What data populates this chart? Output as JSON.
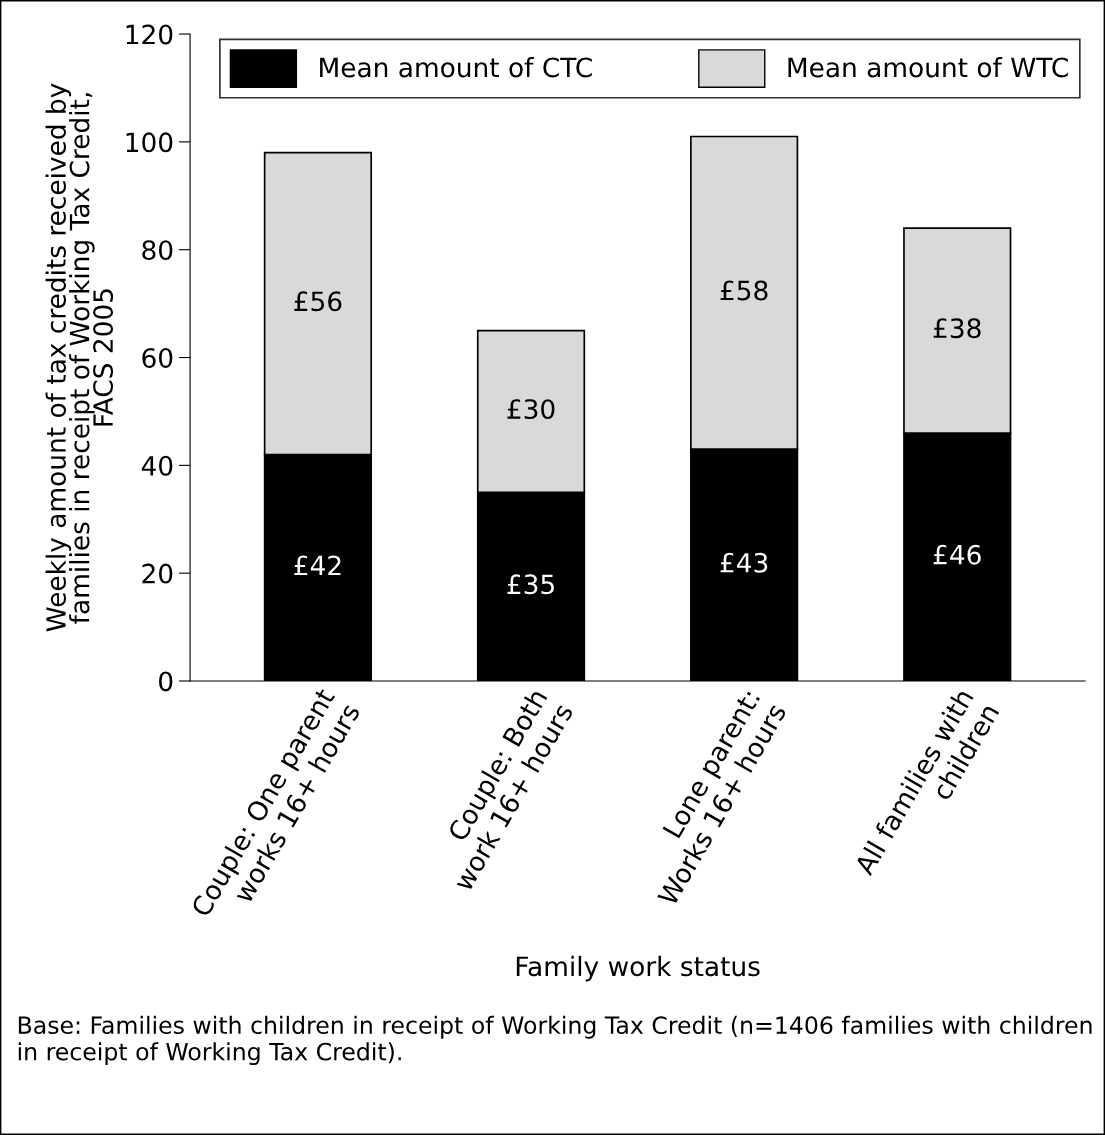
{
  "chart_data": {
    "type": "bar",
    "stacked": true,
    "categories": [
      "Couple: One parent\nworks 16+ hours",
      "Couple: Both\nwork 16+ hours",
      "Lone parent:\nWorks 16+ hours",
      "All families with\nchildren"
    ],
    "series": [
      {
        "name": "Mean amount of CTC",
        "color": "#000000",
        "values": [
          42,
          35,
          43,
          46
        ],
        "value_labels": [
          "£42",
          "£35",
          "£43",
          "£46"
        ]
      },
      {
        "name": "Mean amount of WTC",
        "color": "#d9d9d9",
        "values": [
          56,
          30,
          58,
          38
        ],
        "value_labels": [
          "£56",
          "£30",
          "£58",
          "£38"
        ]
      }
    ],
    "xlabel": "Family work status",
    "ylabel": "Weekly amount of tax credits received by\nfamilies in receipt of Working Tax Credit,\nFACS 2005",
    "ylim": [
      0,
      120
    ],
    "yticks": [
      0,
      20,
      40,
      60,
      80,
      100,
      120
    ],
    "grid": false,
    "legend": "top right",
    "annotations": [
      "Base: Families with children in receipt of Working Tax Credit (n=1406 families with children in receipt of Working Tax Credit)."
    ]
  }
}
